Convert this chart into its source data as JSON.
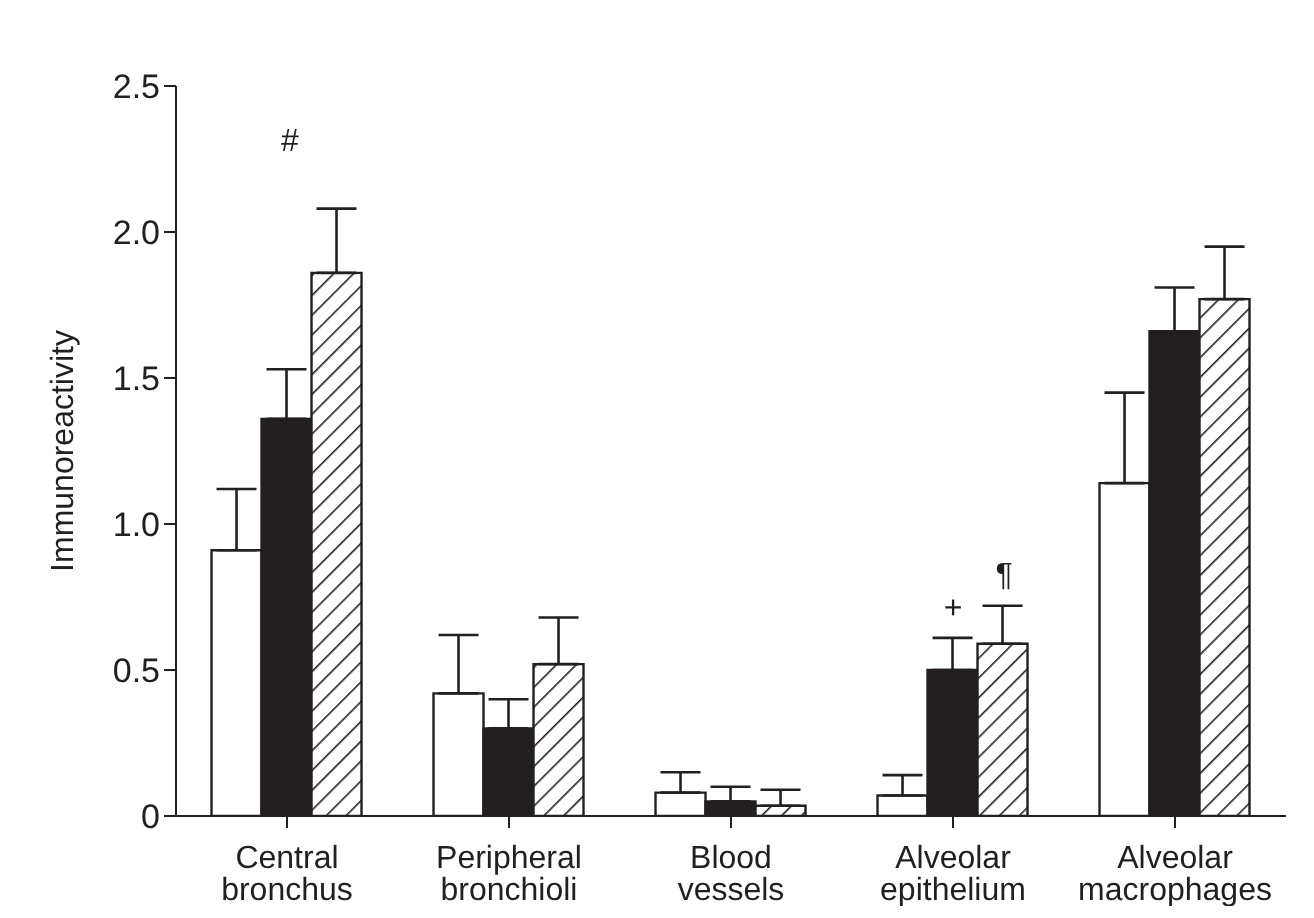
{
  "chart_data": {
    "type": "bar",
    "ylabel": "Immunoreactivity",
    "categories": [
      "Central bronchus",
      "Peripheral bronchioli",
      "Blood vessels",
      "Alveolar epithelium",
      "Alveolar macrophages"
    ],
    "series": [
      {
        "color": "#ffffff",
        "values": [
          0.91,
          0.42,
          0.08,
          0.07,
          1.14
        ],
        "errors": [
          [
            0.91,
            1.12
          ],
          [
            0.42,
            0.62
          ],
          [
            0.08,
            0.15
          ],
          [
            0.07,
            0.14
          ],
          [
            1.14,
            1.45
          ]
        ]
      },
      {
        "color": "#231f20",
        "values": [
          1.36,
          0.3,
          0.05,
          0.5,
          1.66
        ],
        "errors": [
          [
            1.36,
            1.53
          ],
          [
            0.3,
            0.4
          ],
          [
            0.05,
            0.1
          ],
          [
            0.5,
            0.61
          ],
          [
            1.66,
            1.81
          ]
        ]
      },
      {
        "color": "#231f20",
        "values": [
          1.86,
          0.52,
          0.035,
          0.59,
          1.77
        ],
        "errors": [
          [
            1.86,
            2.08
          ],
          [
            0.52,
            0.68
          ],
          [
            0.035,
            0.09
          ],
          [
            0.59,
            0.72
          ],
          [
            1.77,
            1.95
          ]
        ]
      }
    ],
    "ylim": [
      0,
      2.5
    ],
    "yticks": [
      0,
      {
        "value": 0.5,
        "label": "0.5"
      },
      {
        "value": 1,
        "label": "1.0"
      },
      {
        "value": 1.5,
        "label": "1.5"
      },
      {
        "value": 2,
        "label": "2.0"
      },
      {
        "value": 2.5,
        "label": "2.5"
      }
    ],
    "annotations": [
      "#",
      {
        "text": "+",
        "x": "Alveolar epithelium",
        "y": 0.61
      },
      "¶"
    ],
    "grid": false,
    "legend": false
  }
}
